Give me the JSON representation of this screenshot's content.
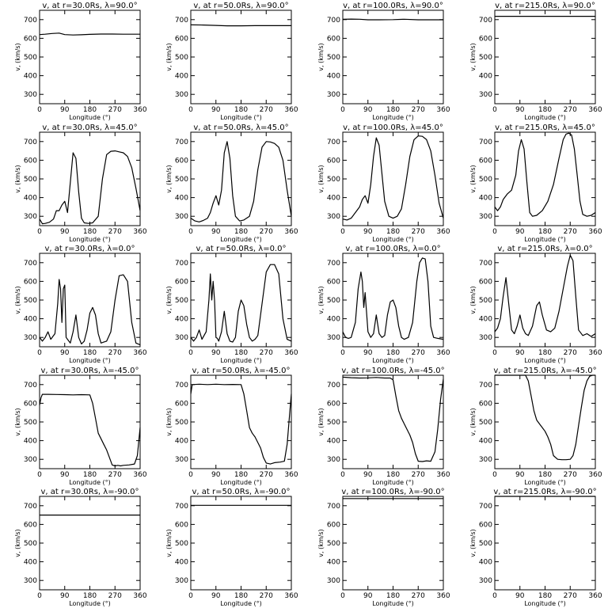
{
  "chart_data": [
    {
      "type": "line",
      "title": "v, at r=30.0Rs, λ=90.0°",
      "xlabel": "Longitude (°)",
      "ylabel": "v, (km/s)",
      "xlim": [
        0,
        360
      ],
      "ylim": [
        250,
        750
      ],
      "xticks": [
        0,
        90,
        180,
        270,
        360
      ],
      "yticks": [
        300,
        400,
        500,
        600,
        700
      ],
      "x": [
        0,
        20,
        45,
        70,
        90,
        120,
        150,
        180,
        220,
        260,
        300,
        330,
        360
      ],
      "y": [
        620,
        622,
        626,
        628,
        620,
        618,
        619,
        621,
        623,
        623,
        622,
        622,
        622
      ]
    },
    {
      "type": "line",
      "title": "v, at r=50.0Rs, λ=90.0°",
      "xlabel": "Longitude (°)",
      "ylabel": "v, (km/s)",
      "xlim": [
        0,
        360
      ],
      "ylim": [
        250,
        750
      ],
      "xticks": [
        0,
        90,
        180,
        270,
        360
      ],
      "yticks": [
        300,
        400,
        500,
        600,
        700
      ],
      "x": [
        0,
        45,
        90,
        130,
        180,
        230,
        270,
        320,
        360
      ],
      "y": [
        672,
        671,
        669,
        667,
        667,
        668,
        668,
        668,
        668
      ]
    },
    {
      "type": "line",
      "title": "v, at r=100.0Rs, λ=90.0°",
      "xlabel": "Longitude (°)",
      "ylabel": "v, (km/s)",
      "xlim": [
        0,
        360
      ],
      "ylim": [
        250,
        750
      ],
      "xticks": [
        0,
        90,
        180,
        270,
        360
      ],
      "yticks": [
        300,
        400,
        500,
        600,
        700
      ],
      "x": [
        0,
        30,
        60,
        90,
        130,
        180,
        220,
        270,
        320,
        360
      ],
      "y": [
        702,
        703,
        702,
        699,
        699,
        700,
        702,
        699,
        699,
        699
      ]
    },
    {
      "type": "line",
      "title": "v, at r=215.0Rs, λ=90.0°",
      "xlabel": "Longitude (°)",
      "ylabel": "v, (km/s)",
      "xlim": [
        0,
        360
      ],
      "ylim": [
        250,
        750
      ],
      "xticks": [
        0,
        90,
        180,
        270,
        360
      ],
      "yticks": [
        300,
        400,
        500,
        600,
        700
      ],
      "x": [
        0,
        90,
        180,
        270,
        360
      ],
      "y": [
        718,
        718,
        718,
        718,
        718
      ]
    },
    {
      "type": "line",
      "title": "v, at r=30.0Rs, λ=45.0°",
      "xlabel": "Longitude (°)",
      "ylabel": "v, (km/s)",
      "xlim": [
        0,
        360
      ],
      "ylim": [
        250,
        750
      ],
      "xticks": [
        0,
        90,
        180,
        270,
        360
      ],
      "yticks": [
        300,
        400,
        500,
        600,
        700
      ],
      "x": [
        0,
        10,
        20,
        35,
        50,
        60,
        70,
        80,
        90,
        100,
        110,
        120,
        130,
        140,
        150,
        160,
        175,
        190,
        210,
        225,
        240,
        255,
        270,
        285,
        300,
        315,
        330,
        345,
        360
      ],
      "y": [
        285,
        260,
        262,
        268,
        285,
        330,
        330,
        360,
        380,
        320,
        480,
        640,
        610,
        430,
        290,
        265,
        262,
        265,
        300,
        500,
        630,
        648,
        650,
        645,
        640,
        620,
        560,
        450,
        330
      ]
    },
    {
      "type": "line",
      "title": "v, at r=50.0Rs, λ=45.0°",
      "xlabel": "Longitude (°)",
      "ylabel": "v, (km/s)",
      "xlim": [
        0,
        360
      ],
      "ylim": [
        250,
        750
      ],
      "xticks": [
        0,
        90,
        180,
        270,
        360
      ],
      "yticks": [
        300,
        400,
        500,
        600,
        700
      ],
      "x": [
        0,
        15,
        30,
        45,
        60,
        70,
        80,
        90,
        100,
        110,
        120,
        130,
        140,
        150,
        160,
        175,
        190,
        210,
        225,
        240,
        255,
        270,
        285,
        300,
        315,
        330,
        345,
        360
      ],
      "y": [
        290,
        275,
        270,
        278,
        290,
        320,
        370,
        410,
        360,
        440,
        640,
        700,
        610,
        410,
        300,
        275,
        280,
        300,
        380,
        550,
        670,
        700,
        698,
        690,
        670,
        600,
        440,
        300
      ]
    },
    {
      "type": "line",
      "title": "v, at r=100.0Rs, λ=45.0°",
      "xlabel": "Longitude (°)",
      "ylabel": "v, (km/s)",
      "xlim": [
        0,
        360
      ],
      "ylim": [
        250,
        750
      ],
      "xticks": [
        0,
        90,
        180,
        270,
        360
      ],
      "yticks": [
        300,
        400,
        500,
        600,
        700
      ],
      "x": [
        0,
        15,
        30,
        45,
        60,
        70,
        80,
        90,
        100,
        110,
        120,
        130,
        140,
        150,
        165,
        180,
        195,
        210,
        225,
        240,
        255,
        270,
        285,
        300,
        315,
        330,
        345,
        360
      ],
      "y": [
        285,
        280,
        290,
        320,
        350,
        390,
        410,
        370,
        470,
        620,
        720,
        680,
        530,
        380,
        300,
        290,
        300,
        340,
        470,
        620,
        710,
        730,
        728,
        710,
        650,
        520,
        370,
        290
      ]
    },
    {
      "type": "line",
      "title": "v, at r=215.0Rs, λ=45.0°",
      "xlabel": "Longitude (°)",
      "ylabel": "v, (km/s)",
      "xlim": [
        0,
        360
      ],
      "ylim": [
        250,
        750
      ],
      "xticks": [
        0,
        90,
        180,
        270,
        360
      ],
      "yticks": [
        300,
        400,
        500,
        600,
        700
      ],
      "x": [
        0,
        10,
        20,
        30,
        45,
        60,
        75,
        85,
        95,
        105,
        115,
        125,
        135,
        150,
        170,
        190,
        210,
        230,
        245,
        255,
        265,
        275,
        285,
        295,
        305,
        315,
        330,
        345,
        360
      ],
      "y": [
        350,
        330,
        350,
        390,
        420,
        440,
        520,
        650,
        710,
        660,
        480,
        320,
        300,
        305,
        330,
        380,
        470,
        610,
        710,
        740,
        745,
        735,
        660,
        520,
        380,
        310,
        300,
        305,
        320
      ]
    },
    {
      "type": "line",
      "title": "v, at r=30.0Rs, λ=0.0°",
      "xlabel": "Longitude (°)",
      "ylabel": "v, (km/s)",
      "xlim": [
        0,
        360
      ],
      "ylim": [
        250,
        750
      ],
      "xticks": [
        0,
        90,
        180,
        270,
        360
      ],
      "yticks": [
        300,
        400,
        500,
        600,
        700
      ],
      "x": [
        0,
        10,
        20,
        30,
        40,
        55,
        65,
        70,
        75,
        80,
        85,
        90,
        95,
        100,
        110,
        120,
        130,
        140,
        150,
        160,
        170,
        180,
        190,
        200,
        210,
        220,
        230,
        240,
        255,
        270,
        285,
        300,
        315,
        330,
        345,
        360
      ],
      "y": [
        300,
        280,
        300,
        330,
        290,
        320,
        480,
        610,
        560,
        380,
        560,
        580,
        300,
        290,
        270,
        330,
        420,
        300,
        265,
        280,
        340,
        430,
        460,
        420,
        320,
        270,
        275,
        280,
        330,
        500,
        630,
        635,
        600,
        380,
        270,
        260
      ]
    },
    {
      "type": "line",
      "title": "v, at r=50.0Rs, λ=0.0°",
      "xlabel": "Longitude (°)",
      "ylabel": "v, (km/s)",
      "xlim": [
        0,
        360
      ],
      "ylim": [
        250,
        750
      ],
      "xticks": [
        0,
        90,
        180,
        270,
        360
      ],
      "yticks": [
        300,
        400,
        500,
        600,
        700
      ],
      "x": [
        0,
        10,
        20,
        30,
        40,
        55,
        65,
        70,
        75,
        80,
        85,
        90,
        95,
        100,
        110,
        120,
        130,
        140,
        150,
        160,
        170,
        180,
        190,
        200,
        210,
        220,
        230,
        240,
        255,
        270,
        285,
        300,
        315,
        330,
        345,
        360
      ],
      "y": [
        300,
        280,
        300,
        340,
        290,
        330,
        500,
        640,
        500,
        600,
        500,
        300,
        295,
        280,
        330,
        440,
        320,
        280,
        275,
        300,
        440,
        500,
        470,
        370,
        300,
        280,
        290,
        310,
        480,
        650,
        690,
        690,
        640,
        400,
        290,
        280
      ]
    },
    {
      "type": "line",
      "title": "v, at r=100.0Rs, λ=0.0°",
      "xlabel": "Longitude (°)",
      "ylabel": "v, (km/s)",
      "xlim": [
        0,
        360
      ],
      "ylim": [
        250,
        750
      ],
      "xticks": [
        0,
        90,
        180,
        270,
        360
      ],
      "yticks": [
        300,
        400,
        500,
        600,
        700
      ],
      "x": [
        0,
        10,
        20,
        30,
        45,
        55,
        65,
        70,
        75,
        80,
        90,
        100,
        110,
        120,
        130,
        140,
        150,
        160,
        170,
        180,
        190,
        200,
        210,
        220,
        235,
        250,
        265,
        275,
        285,
        295,
        305,
        315,
        325,
        340,
        360
      ],
      "y": [
        330,
        300,
        295,
        300,
        380,
        560,
        650,
        600,
        460,
        540,
        330,
        300,
        320,
        420,
        320,
        300,
        310,
        420,
        490,
        500,
        460,
        360,
        300,
        290,
        300,
        380,
        600,
        700,
        725,
        720,
        600,
        360,
        300,
        295,
        290
      ]
    },
    {
      "type": "line",
      "title": "v, at r=215.0Rs, λ=0.0°",
      "xlabel": "Longitude (°)",
      "ylabel": "v, (km/s)",
      "xlim": [
        0,
        360
      ],
      "ylim": [
        250,
        750
      ],
      "xticks": [
        0,
        90,
        180,
        270,
        360
      ],
      "yticks": [
        300,
        400,
        500,
        600,
        700
      ],
      "x": [
        0,
        10,
        20,
        30,
        40,
        50,
        60,
        70,
        80,
        90,
        100,
        110,
        120,
        135,
        150,
        160,
        170,
        185,
        200,
        215,
        230,
        245,
        260,
        270,
        280,
        290,
        300,
        315,
        330,
        345,
        360
      ],
      "y": [
        330,
        350,
        400,
        520,
        620,
        480,
        340,
        320,
        360,
        420,
        350,
        320,
        310,
        360,
        470,
        490,
        420,
        340,
        330,
        350,
        440,
        560,
        680,
        740,
        710,
        520,
        340,
        310,
        320,
        305,
        320
      ]
    },
    {
      "type": "line",
      "title": "v, at r=30.0Rs, λ=-45.0°",
      "xlabel": "Longitude (°)",
      "ylabel": "v, (km/s)",
      "xlim": [
        0,
        360
      ],
      "ylim": [
        250,
        750
      ],
      "xticks": [
        0,
        90,
        180,
        270,
        360
      ],
      "yticks": [
        300,
        400,
        500,
        600,
        700
      ],
      "x": [
        0,
        5,
        10,
        30,
        60,
        90,
        120,
        150,
        180,
        190,
        200,
        210,
        220,
        230,
        240,
        250,
        260,
        270,
        280,
        290,
        300,
        320,
        340,
        350,
        360
      ],
      "y": [
        590,
        630,
        648,
        648,
        647,
        646,
        645,
        646,
        645,
        600,
        520,
        440,
        410,
        380,
        350,
        310,
        270,
        265,
        268,
        265,
        268,
        270,
        275,
        320,
        470
      ]
    },
    {
      "type": "line",
      "title": "v, at r=50.0Rs, λ=-45.0°",
      "xlabel": "Longitude (°)",
      "ylabel": "v, (km/s)",
      "xlim": [
        0,
        360
      ],
      "ylim": [
        250,
        750
      ],
      "xticks": [
        0,
        90,
        180,
        270,
        360
      ],
      "yticks": [
        300,
        400,
        500,
        600,
        700
      ],
      "x": [
        0,
        5,
        30,
        60,
        90,
        120,
        150,
        180,
        190,
        200,
        210,
        220,
        230,
        240,
        250,
        260,
        270,
        285,
        300,
        320,
        335,
        345,
        355,
        360
      ],
      "y": [
        650,
        700,
        702,
        700,
        702,
        700,
        701,
        700,
        650,
        560,
        470,
        440,
        420,
        390,
        360,
        310,
        280,
        275,
        282,
        285,
        290,
        380,
        560,
        650
      ]
    },
    {
      "type": "line",
      "title": "v, at r=100.0Rs, λ=-45.0°",
      "xlabel": "Longitude (°)",
      "ylabel": "v, (km/s)",
      "xlim": [
        0,
        360
      ],
      "ylim": [
        250,
        750
      ],
      "xticks": [
        0,
        90,
        180,
        270,
        360
      ],
      "yticks": [
        300,
        400,
        500,
        600,
        700
      ],
      "x": [
        0,
        30,
        60,
        90,
        120,
        150,
        170,
        180,
        190,
        200,
        210,
        220,
        230,
        240,
        250,
        260,
        270,
        285,
        300,
        315,
        330,
        340,
        350,
        360
      ],
      "y": [
        740,
        737,
        735,
        736,
        738,
        735,
        735,
        725,
        640,
        560,
        520,
        490,
        460,
        430,
        390,
        330,
        290,
        288,
        292,
        290,
        340,
        460,
        620,
        730
      ]
    },
    {
      "type": "line",
      "title": "v, at r=215.0Rs, λ=-45.0°",
      "xlabel": "Longitude (°)",
      "ylabel": "v, (km/s)",
      "xlim": [
        0,
        360
      ],
      "ylim": [
        250,
        750
      ],
      "xticks": [
        0,
        90,
        180,
        270,
        360
      ],
      "yticks": [
        300,
        400,
        500,
        600,
        700
      ],
      "x": [
        0,
        30,
        60,
        90,
        110,
        120,
        130,
        140,
        150,
        160,
        170,
        180,
        190,
        200,
        210,
        225,
        240,
        255,
        270,
        280,
        290,
        300,
        310,
        320,
        330,
        340,
        350,
        360
      ],
      "y": [
        755,
        756,
        756,
        754,
        750,
        720,
        640,
        560,
        510,
        490,
        470,
        450,
        420,
        380,
        320,
        300,
        298,
        298,
        300,
        320,
        380,
        480,
        580,
        670,
        720,
        745,
        750,
        750
      ]
    },
    {
      "type": "line",
      "title": "v, at r=30.0Rs, λ=-90.0°",
      "xlabel": "Longitude (°)",
      "ylabel": "v, (km/s)",
      "xlim": [
        0,
        360
      ],
      "ylim": [
        250,
        750
      ],
      "xticks": [
        0,
        90,
        180,
        270,
        360
      ],
      "yticks": [
        300,
        400,
        500,
        600,
        700
      ],
      "x": [
        0,
        90,
        180,
        270,
        360
      ],
      "y": [
        650,
        650,
        650,
        650,
        650
      ]
    },
    {
      "type": "line",
      "title": "v, at r=50.0Rs, λ=-90.0°",
      "xlabel": "Longitude (°)",
      "ylabel": "v, (km/s)",
      "xlim": [
        0,
        360
      ],
      "ylim": [
        250,
        750
      ],
      "xticks": [
        0,
        90,
        180,
        270,
        360
      ],
      "yticks": [
        300,
        400,
        500,
        600,
        700
      ],
      "x": [
        0,
        90,
        180,
        270,
        360
      ],
      "y": [
        702,
        702,
        702,
        702,
        702
      ]
    },
    {
      "type": "line",
      "title": "v, at r=100.0Rs, λ=-90.0°",
      "xlabel": "Longitude (°)",
      "ylabel": "v, (km/s)",
      "xlim": [
        0,
        360
      ],
      "ylim": [
        250,
        750
      ],
      "xticks": [
        0,
        90,
        180,
        270,
        360
      ],
      "yticks": [
        300,
        400,
        500,
        600,
        700
      ],
      "x": [
        0,
        90,
        180,
        270,
        360
      ],
      "y": [
        738,
        738,
        738,
        738,
        738
      ]
    },
    {
      "type": "line",
      "title": "v, at r=215.0Rs, λ=-90.0°",
      "xlabel": "Longitude (°)",
      "ylabel": "v, (km/s)",
      "xlim": [
        0,
        360
      ],
      "ylim": [
        250,
        750
      ],
      "xticks": [
        0,
        90,
        180,
        270,
        360
      ],
      "yticks": [
        300,
        400,
        500,
        600,
        700
      ],
      "x": [
        0,
        90,
        180,
        270,
        360
      ],
      "y": [
        758,
        758,
        758,
        758,
        758
      ]
    }
  ]
}
